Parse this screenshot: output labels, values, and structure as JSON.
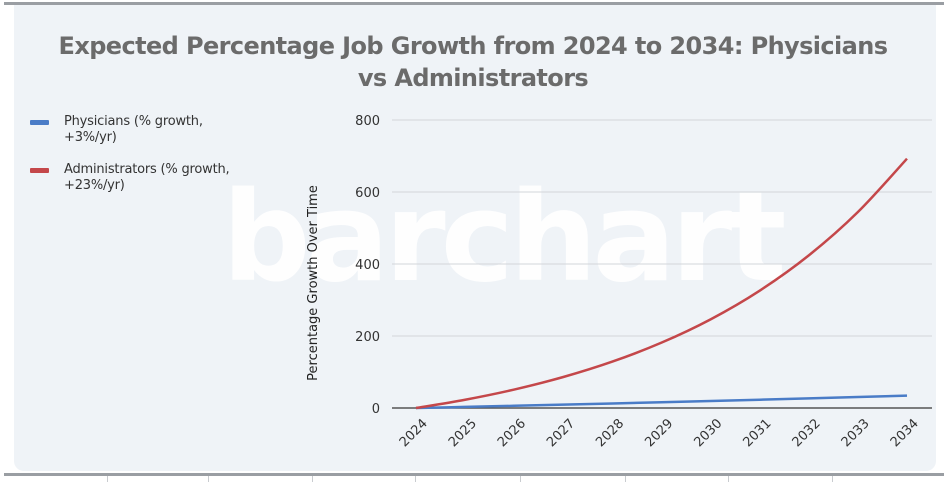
{
  "chart_data": {
    "type": "line",
    "title": "Expected Percentage Job Growth from 2024 to 2034: Physicians vs Administrators",
    "title_lines": [
      "Expected Percentage Job Growth from 2024 to 2034: Physicians",
      "vs Administrators"
    ],
    "xlabel": "",
    "ylabel": "Percentage Growth Over Time",
    "x": [
      "2024",
      "2025",
      "2026",
      "2027",
      "2028",
      "2029",
      "2030",
      "2031",
      "2032",
      "2033",
      "2034"
    ],
    "ylim": [
      0,
      800
    ],
    "yticks": [
      0,
      200,
      400,
      600,
      800
    ],
    "grid": true,
    "legend_position": "left",
    "series": [
      {
        "name": "Physicians (% growth, +3%/yr)",
        "label_lines": [
          "Physicians (% growth,",
          "+3%/yr)"
        ],
        "color": "#4a7cc7",
        "values": [
          0,
          3.0,
          6.09,
          9.27,
          12.55,
          15.93,
          19.41,
          22.99,
          26.68,
          30.48,
          34.39
        ]
      },
      {
        "name": "Administrators (% growth, +23%/yr)",
        "label_lines": [
          "Administrators (% growth,",
          "+23%/yr)"
        ],
        "color": "#c4474a",
        "values": [
          0,
          23.0,
          51.29,
          86.09,
          128.89,
          181.53,
          246.27,
          325.92,
          423.88,
          544.37,
          692.58
        ]
      }
    ],
    "watermark": "barchart"
  },
  "colors": {
    "card_background": "#eff3f7",
    "gridline": "#d3d6da",
    "axis": "#555555",
    "title": "#6b6b6b"
  }
}
